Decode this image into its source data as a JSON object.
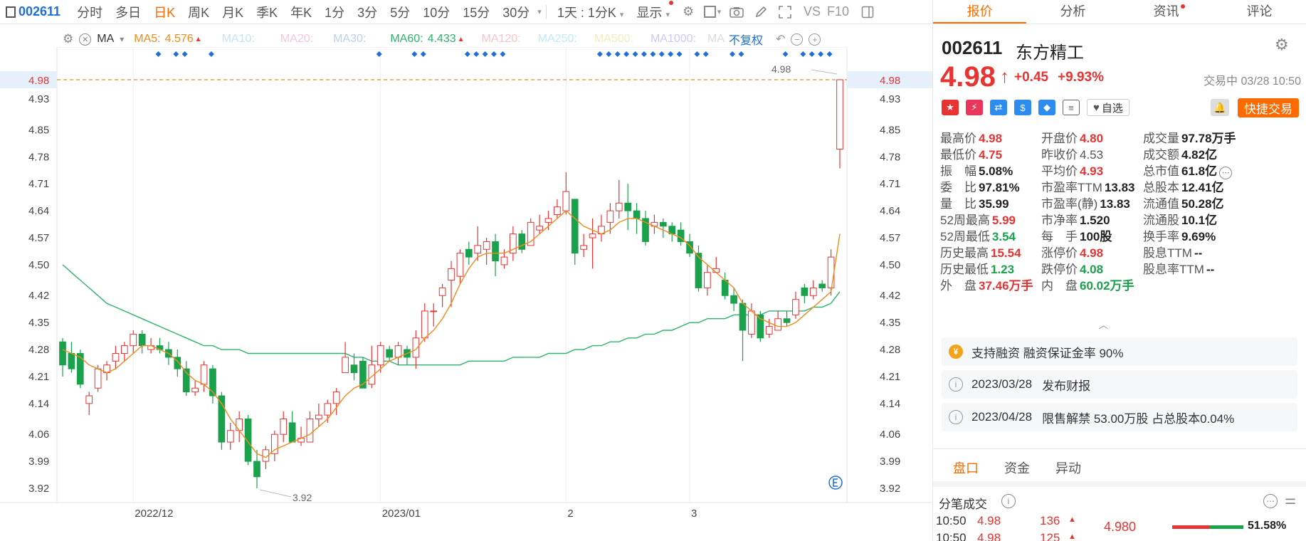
{
  "toolbar": {
    "stock_code": "002611",
    "periods": [
      {
        "label": "分时",
        "active": false
      },
      {
        "label": "多日",
        "active": false
      },
      {
        "label": "日K",
        "active": true
      },
      {
        "label": "周K",
        "active": false
      },
      {
        "label": "月K",
        "active": false
      },
      {
        "label": "季K",
        "active": false
      },
      {
        "label": "年K",
        "active": false
      },
      {
        "label": "1分",
        "active": false
      },
      {
        "label": "3分",
        "active": false
      },
      {
        "label": "5分",
        "active": false
      },
      {
        "label": "10分",
        "active": false
      },
      {
        "label": "15分",
        "active": false
      },
      {
        "label": "30分",
        "active": false
      }
    ],
    "interval_select": "1天 : 1分K",
    "display_label": "显示",
    "vs_label": "VS",
    "f10_label": "F10"
  },
  "indicators": {
    "ma_label": "MA",
    "ma5": {
      "label": "MA5:",
      "value": "4.576",
      "color": "#f08a1c"
    },
    "ma10": "MA10:",
    "ma20": "MA20:",
    "ma30": "MA30:",
    "ma60": {
      "label": "MA60:",
      "value": "4.433",
      "color": "#2db36b"
    },
    "ma120": "MA120:",
    "ma250": "MA250:",
    "ma500": "MA500:",
    "ma1000": "MA1000:",
    "ma_more": "MA",
    "adjust_label": "不复权"
  },
  "chart_data": {
    "type": "candlestick",
    "y_ticks": [
      "4.98",
      "4.93",
      "4.85",
      "4.78",
      "4.71",
      "4.64",
      "4.57",
      "4.50",
      "4.42",
      "4.35",
      "4.28",
      "4.21",
      "4.14",
      "4.06",
      "3.99",
      "3.92"
    ],
    "ylim": [
      3.92,
      4.98
    ],
    "x_labels": [
      "2022/12",
      "2023/01",
      "2",
      "3"
    ],
    "high_annotation": "4.98",
    "low_annotation": "3.92",
    "current_price_label": "4.98",
    "candles": [
      [
        4.3,
        4.24,
        4.31,
        4.21
      ],
      [
        4.27,
        4.23,
        4.3,
        4.22
      ],
      [
        4.27,
        4.19,
        4.28,
        4.18
      ],
      [
        4.14,
        4.16,
        4.17,
        4.11
      ],
      [
        4.18,
        4.23,
        4.24,
        4.17
      ],
      [
        4.22,
        4.24,
        4.25,
        4.2
      ],
      [
        4.25,
        4.27,
        4.29,
        4.23
      ],
      [
        4.27,
        4.29,
        4.3,
        4.25
      ],
      [
        4.29,
        4.32,
        4.33,
        4.27
      ],
      [
        4.32,
        4.29,
        4.33,
        4.27
      ],
      [
        4.28,
        4.29,
        4.31,
        4.27
      ],
      [
        4.29,
        4.28,
        4.31,
        4.27
      ],
      [
        4.28,
        4.26,
        4.3,
        4.24
      ],
      [
        4.26,
        4.23,
        4.28,
        4.21
      ],
      [
        4.23,
        4.17,
        4.25,
        4.16
      ],
      [
        4.17,
        4.18,
        4.2,
        4.16
      ],
      [
        4.19,
        4.24,
        4.25,
        4.17
      ],
      [
        4.23,
        4.16,
        4.24,
        4.14
      ],
      [
        4.16,
        4.04,
        4.17,
        4.02
      ],
      [
        4.04,
        4.07,
        4.09,
        4.02
      ],
      [
        4.07,
        4.1,
        4.12,
        4.04
      ],
      [
        4.1,
        3.99,
        4.11,
        3.98
      ],
      [
        3.99,
        3.95,
        4.02,
        3.92
      ],
      [
        3.99,
        4.02,
        4.03,
        3.97
      ],
      [
        4.01,
        4.06,
        4.07,
        3.99
      ],
      [
        4.06,
        4.1,
        4.12,
        4.04
      ],
      [
        4.09,
        4.04,
        4.12,
        4.04
      ],
      [
        4.04,
        4.05,
        4.08,
        4.03
      ],
      [
        4.04,
        4.1,
        4.12,
        4.04
      ],
      [
        4.1,
        4.11,
        4.14,
        4.08
      ],
      [
        4.11,
        4.14,
        4.15,
        4.09
      ],
      [
        4.14,
        4.17,
        4.18,
        4.11
      ],
      [
        4.22,
        4.26,
        4.3,
        4.22
      ],
      [
        4.24,
        4.22,
        4.27,
        4.2
      ],
      [
        4.25,
        4.18,
        4.26,
        4.18
      ],
      [
        4.19,
        4.24,
        4.29,
        4.18
      ],
      [
        4.24,
        4.29,
        4.3,
        4.22
      ],
      [
        4.28,
        4.26,
        4.29,
        4.25
      ],
      [
        4.26,
        4.29,
        4.3,
        4.24
      ],
      [
        4.28,
        4.26,
        4.29,
        4.24
      ],
      [
        4.26,
        4.31,
        4.33,
        4.23
      ],
      [
        4.31,
        4.38,
        4.4,
        4.3
      ],
      [
        4.38,
        4.38,
        4.4,
        4.34
      ],
      [
        4.42,
        4.44,
        4.45,
        4.39
      ],
      [
        4.46,
        4.49,
        4.51,
        4.39
      ],
      [
        4.47,
        4.53,
        4.54,
        4.45
      ],
      [
        4.54,
        4.52,
        4.56,
        4.5
      ],
      [
        4.53,
        4.55,
        4.6,
        4.51
      ],
      [
        4.54,
        4.56,
        4.57,
        4.5
      ],
      [
        4.56,
        4.51,
        4.58,
        4.47
      ],
      [
        4.5,
        4.52,
        4.54,
        4.49
      ],
      [
        4.53,
        4.58,
        4.6,
        4.51
      ],
      [
        4.58,
        4.54,
        4.59,
        4.53
      ],
      [
        4.55,
        4.61,
        4.62,
        4.55
      ],
      [
        4.59,
        4.6,
        4.63,
        4.58
      ],
      [
        4.61,
        4.62,
        4.64,
        4.59
      ],
      [
        4.63,
        4.65,
        4.67,
        4.62
      ],
      [
        4.64,
        4.69,
        4.74,
        4.63
      ],
      [
        4.67,
        4.53,
        4.67,
        4.5
      ],
      [
        4.54,
        4.55,
        4.58,
        4.52
      ],
      [
        4.57,
        4.58,
        4.62,
        4.49
      ],
      [
        4.58,
        4.6,
        4.63,
        4.56
      ],
      [
        4.61,
        4.64,
        4.66,
        4.58
      ],
      [
        4.64,
        4.66,
        4.72,
        4.62
      ],
      [
        4.66,
        4.64,
        4.71,
        4.59
      ],
      [
        4.64,
        4.62,
        4.66,
        4.58
      ],
      [
        4.62,
        4.56,
        4.64,
        4.55
      ],
      [
        4.6,
        4.61,
        4.63,
        4.58
      ],
      [
        4.61,
        4.6,
        4.62,
        4.57
      ],
      [
        4.6,
        4.58,
        4.61,
        4.56
      ],
      [
        4.59,
        4.56,
        4.61,
        4.55
      ],
      [
        4.56,
        4.53,
        4.58,
        4.52
      ],
      [
        4.53,
        4.44,
        4.55,
        4.43
      ],
      [
        4.44,
        4.48,
        4.5,
        4.42
      ],
      [
        4.48,
        4.49,
        4.52,
        4.48
      ],
      [
        4.46,
        4.42,
        4.48,
        4.41
      ],
      [
        4.42,
        4.4,
        4.44,
        4.38
      ],
      [
        4.4,
        4.33,
        4.41,
        4.25
      ],
      [
        4.32,
        4.38,
        4.4,
        4.31
      ],
      [
        4.37,
        4.31,
        4.38,
        4.3
      ],
      [
        4.32,
        4.34,
        4.36,
        4.31
      ],
      [
        4.33,
        4.36,
        4.38,
        4.33
      ],
      [
        4.36,
        4.35,
        4.38,
        4.34
      ],
      [
        4.37,
        4.41,
        4.43,
        4.36
      ],
      [
        4.44,
        4.42,
        4.45,
        4.4
      ],
      [
        4.42,
        4.44,
        4.46,
        4.41
      ],
      [
        4.45,
        4.44,
        4.46,
        4.43
      ],
      [
        4.44,
        4.52,
        4.54,
        4.42
      ],
      [
        4.8,
        4.98,
        4.98,
        4.75
      ]
    ],
    "ma5_values": [
      4.28,
      4.27,
      4.26,
      4.24,
      4.23,
      4.22,
      4.23,
      4.25,
      4.27,
      4.29,
      4.29,
      4.28,
      4.27,
      4.25,
      4.22,
      4.2,
      4.19,
      4.17,
      4.14,
      4.1,
      4.07,
      4.04,
      4.01,
      4.0,
      4.02,
      4.03,
      4.04,
      4.05,
      4.06,
      4.08,
      4.1,
      4.13,
      4.16,
      4.18,
      4.19,
      4.21,
      4.23,
      4.25,
      4.26,
      4.27,
      4.28,
      4.31,
      4.33,
      4.36,
      4.4,
      4.45,
      4.49,
      4.52,
      4.53,
      4.53,
      4.53,
      4.54,
      4.55,
      4.56,
      4.58,
      4.6,
      4.62,
      4.64,
      4.62,
      4.6,
      4.59,
      4.58,
      4.59,
      4.61,
      4.62,
      4.62,
      4.61,
      4.6,
      4.59,
      4.58,
      4.57,
      4.55,
      4.52,
      4.5,
      4.48,
      4.46,
      4.44,
      4.4,
      4.38,
      4.36,
      4.35,
      4.34,
      4.34,
      4.35,
      4.37,
      4.39,
      4.41,
      4.43,
      4.58
    ],
    "ma60_values": [
      4.5,
      4.48,
      4.46,
      4.44,
      4.42,
      4.4,
      4.39,
      4.38,
      4.37,
      4.36,
      4.35,
      4.34,
      4.33,
      4.32,
      4.31,
      4.3,
      4.29,
      4.29,
      4.28,
      4.28,
      4.28,
      4.27,
      4.27,
      4.27,
      4.27,
      4.27,
      4.27,
      4.27,
      4.27,
      4.27,
      4.27,
      4.27,
      4.27,
      4.26,
      4.26,
      4.25,
      4.25,
      4.25,
      4.24,
      4.24,
      4.24,
      4.24,
      4.24,
      4.24,
      4.24,
      4.24,
      4.25,
      4.25,
      4.25,
      4.25,
      4.25,
      4.26,
      4.26,
      4.26,
      4.26,
      4.27,
      4.27,
      4.27,
      4.28,
      4.28,
      4.29,
      4.29,
      4.3,
      4.3,
      4.31,
      4.31,
      4.32,
      4.32,
      4.33,
      4.33,
      4.34,
      4.35,
      4.35,
      4.36,
      4.36,
      4.36,
      4.37,
      4.37,
      4.37,
      4.37,
      4.38,
      4.38,
      4.38,
      4.38,
      4.38,
      4.39,
      4.39,
      4.4,
      4.43
    ]
  },
  "panel": {
    "tabs": [
      "报价",
      "分析",
      "资讯",
      "评论"
    ],
    "stock_code": "002611",
    "stock_name": "东方精工",
    "price": "4.98",
    "change": "+0.45",
    "change_pct": "+9.93%",
    "trade_status": "交易中 03/28 10:50",
    "watch_label": "自选",
    "quick_trade_label": "快捷交易",
    "stats": [
      {
        "label": "最高价",
        "value": "4.98",
        "color": "red"
      },
      {
        "label": "开盘价",
        "value": "4.80",
        "color": "red"
      },
      {
        "label": "成交量",
        "value": "97.78万手",
        "color": "black"
      },
      {
        "label": "最低价",
        "value": "4.75",
        "color": "red"
      },
      {
        "label": "昨收价",
        "value": "4.53",
        "color": "gray"
      },
      {
        "label": "成交额",
        "value": "4.82亿",
        "color": "black"
      },
      {
        "label": "振　幅",
        "value": "5.08%",
        "color": "black"
      },
      {
        "label": "平均价",
        "value": "4.93",
        "color": "red"
      },
      {
        "label": "总市值",
        "value": "61.8亿",
        "color": "black"
      },
      {
        "label": "委　比",
        "value": "97.81%",
        "color": "black"
      },
      {
        "label": "市盈率TTM",
        "value": "13.83",
        "color": "black"
      },
      {
        "label": "总股本",
        "value": "12.41亿",
        "color": "black"
      },
      {
        "label": "量　比",
        "value": "35.99",
        "color": "black"
      },
      {
        "label": "市盈率(静)",
        "value": "13.83",
        "color": "black"
      },
      {
        "label": "流通值",
        "value": "50.28亿",
        "color": "black"
      },
      {
        "label": "52周最高",
        "value": "5.99",
        "color": "red"
      },
      {
        "label": "市净率",
        "value": "1.520",
        "color": "black"
      },
      {
        "label": "流通股",
        "value": "10.1亿",
        "color": "black"
      },
      {
        "label": "52周最低",
        "value": "3.54",
        "color": "green"
      },
      {
        "label": "每　手",
        "value": "100股",
        "color": "black"
      },
      {
        "label": "换手率",
        "value": "9.69%",
        "color": "black"
      },
      {
        "label": "历史最高",
        "value": "15.54",
        "color": "red"
      },
      {
        "label": "涨停价",
        "value": "4.98",
        "color": "red"
      },
      {
        "label": "股息TTM",
        "value": "--",
        "color": "black"
      },
      {
        "label": "历史最低",
        "value": "1.23",
        "color": "green"
      },
      {
        "label": "跌停价",
        "value": "4.08",
        "color": "green"
      },
      {
        "label": "股息率TTM",
        "value": "--",
        "color": "black"
      },
      {
        "label": "外　盘",
        "value": "37.46万手",
        "color": "red"
      },
      {
        "label": "内　盘",
        "value": "60.02万手",
        "color": "green"
      }
    ],
    "notices": [
      {
        "icon": "coin-icon",
        "text": "支持融资 融资保证金率 90%"
      },
      {
        "icon": "info-icon",
        "date": "2023/03/28",
        "text": "发布财报"
      },
      {
        "icon": "info-icon",
        "date": "2023/04/28",
        "text": "限售解禁 53.00万股 占总股本0.04%"
      }
    ],
    "bottom_tabs": [
      "盘口",
      "资金",
      "异动"
    ],
    "trades_title": "分笔成交",
    "trades": [
      {
        "time": "10:50",
        "price": "4.98",
        "vol": "136"
      },
      {
        "time": "10:50",
        "price": "4.98",
        "vol": "125"
      }
    ],
    "trade_side_price": "4.980",
    "trade_side_vol": "51.58%"
  }
}
